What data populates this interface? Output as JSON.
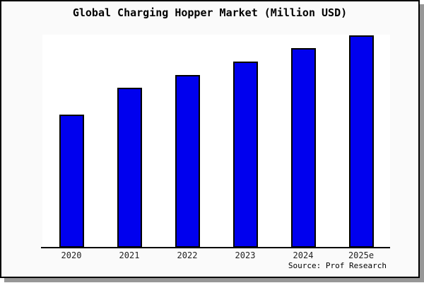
{
  "window": {
    "margin_bg": "#fafafa",
    "plot_bg": "#ffffff",
    "frame_border_color": "#000000",
    "shadow_color": "#979797"
  },
  "chart_data": {
    "type": "bar",
    "title": "Global Charging Hopper Market (Million USD)",
    "categories": [
      "2020",
      "2021",
      "2022",
      "2023",
      "2024",
      "2025e"
    ],
    "values": [
      62.5,
      75.2,
      81.5,
      87.7,
      94.0,
      100.0
    ],
    "values_note": "no y-axis scale shown; values are relative index with 2025e bar = 100, estimated from bar pixel heights",
    "series_name": "Global Charging Hopper Market",
    "xlabel": "",
    "ylabel": "",
    "ylim": [
      0,
      100.5
    ],
    "grid": false,
    "y_axis_visible": false,
    "legend": "none",
    "bar_color": "#0000ee",
    "bar_edge_color": "#000000",
    "source": "Source: Prof Research"
  }
}
